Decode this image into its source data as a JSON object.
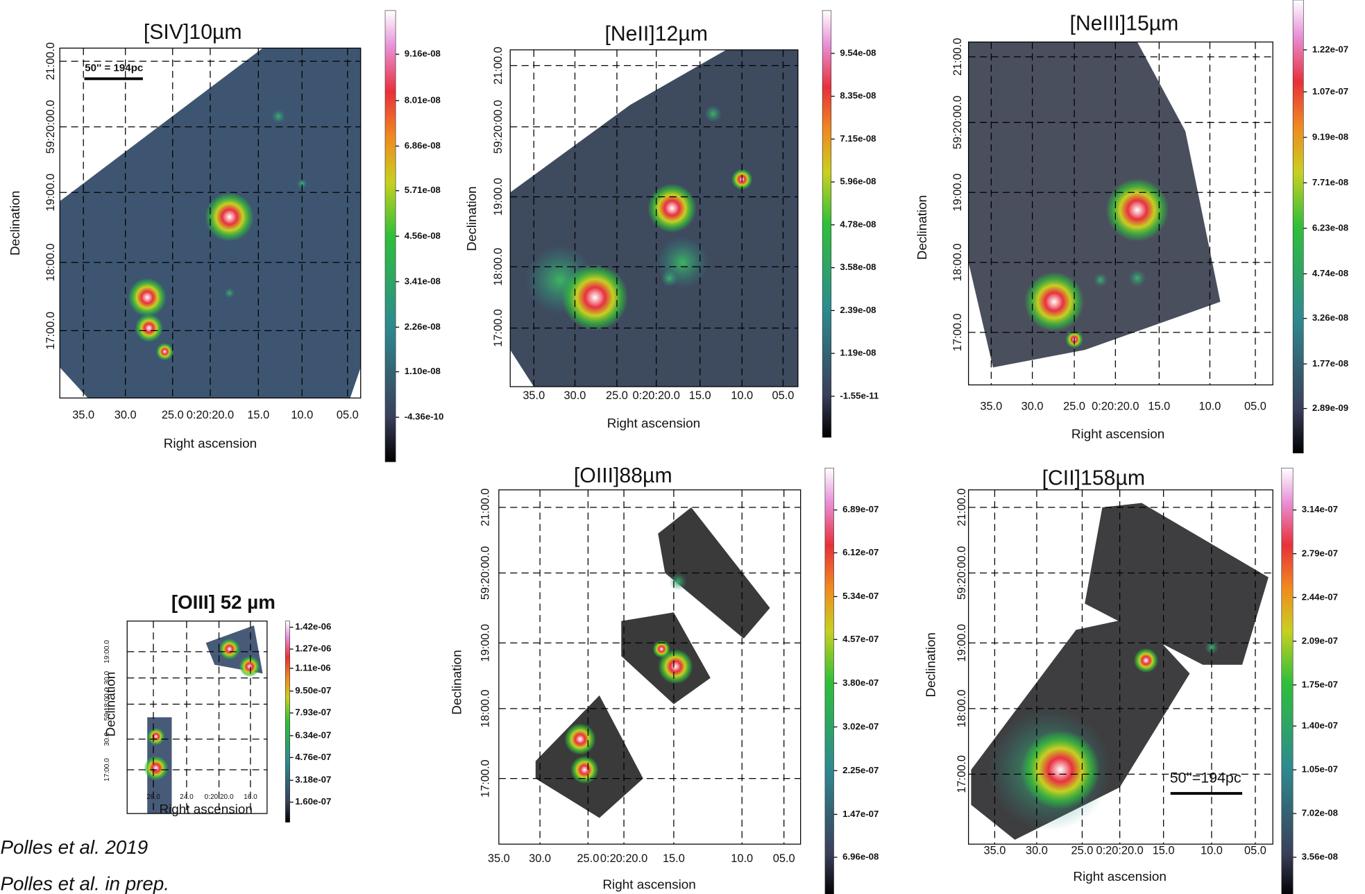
{
  "panels": [
    {
      "title": "[SIV]10µm",
      "ra_label": "Right ascension",
      "dec_label": "Declination",
      "dec_ticks": [
        "21:00.0",
        "59:20:00.0",
        "19:00.0",
        "18:00.0",
        "17:00.0"
      ],
      "ra_ticks": [
        "35.0",
        "30.0",
        "25.0",
        "0:20:20.0",
        "15.0",
        "10.0",
        "05.0"
      ],
      "colorbar": [
        "9.16e-08",
        "8.01e-08",
        "6.86e-08",
        "5.71e-08",
        "4.56e-08",
        "3.41e-08",
        "2.26e-08",
        "1.10e-08",
        "-4.36e-10"
      ],
      "scale_bar": "50'' = 194pc"
    },
    {
      "title": "[NeII]12µm",
      "ra_label": "Right ascension",
      "dec_label": "Declination",
      "dec_ticks": [
        "21:00.0",
        "59:20:00.0",
        "19:00.0",
        "18:00.0",
        "17:00.0"
      ],
      "ra_ticks": [
        "35.0",
        "30.0",
        "25.0",
        "0:20:20.0",
        "15.0",
        "10.0",
        "05.0"
      ],
      "colorbar": [
        "9.54e-08",
        "8.35e-08",
        "7.15e-08",
        "5.96e-08",
        "4.78e-08",
        "3.58e-08",
        "2.39e-08",
        "1.19e-08",
        "-1.55e-11"
      ]
    },
    {
      "title": "[NeIII]15µm",
      "ra_label": "Right ascension",
      "dec_label": "Declination",
      "dec_ticks": [
        "21:00.0",
        "59:20:00.0",
        "19:00.0",
        "18:00.0",
        "17:00.0"
      ],
      "ra_ticks": [
        "35.0",
        "30.0",
        "25.0",
        "0:20:20.0",
        "15.0",
        "10.0",
        "05.0"
      ],
      "colorbar": [
        "1.22e-07",
        "1.07e-07",
        "9.19e-08",
        "7.71e-08",
        "6.23e-08",
        "4.74e-08",
        "3.26e-08",
        "1.77e-08",
        "2.89e-09"
      ]
    },
    {
      "title": "[OIII] 52 µm",
      "ra_label": "Right ascension",
      "dec_label": "Declination",
      "dec_ticks": [
        "19:00.0",
        "30.0",
        "59:18:00.0",
        "30.0",
        "17:00.0"
      ],
      "ra_ticks": [
        "28.0",
        "24.0",
        "0:20:20.0",
        "16.0"
      ],
      "colorbar": [
        "1.42e-06",
        "1.27e-06",
        "1.11e-06",
        "9.50e-07",
        "7.93e-07",
        "6.34e-07",
        "4.76e-07",
        "3.18e-07",
        "1.60e-07"
      ]
    },
    {
      "title": "[OIII]88µm",
      "ra_label": "Right ascension",
      "dec_label": "Declination",
      "dec_ticks": [
        "21:00.0",
        "59:20:00.0",
        "19:00.0",
        "18:00.0",
        "17:00.0"
      ],
      "ra_ticks": [
        "35.0",
        "30.0",
        "25.0",
        "0:20:20.0",
        "15.0",
        "10.0",
        "05.0"
      ],
      "colorbar": [
        "6.89e-07",
        "6.12e-07",
        "5.34e-07",
        "4.57e-07",
        "3.80e-07",
        "3.02e-07",
        "2.25e-07",
        "1.47e-07",
        "6.96e-08"
      ]
    },
    {
      "title": "[CII]158µm",
      "ra_label": "Right ascension",
      "dec_label": "Declination",
      "dec_ticks": [
        "21:00.0",
        "59:20:00.0",
        "19:00.0",
        "18:00.0",
        "17:00.0"
      ],
      "ra_ticks": [
        "35.0",
        "30.0",
        "25.0",
        "0:20:20.0",
        "15.0",
        "10.0",
        "05.0"
      ],
      "colorbar": [
        "3.14e-07",
        "2.79e-07",
        "2.44e-07",
        "2.09e-07",
        "1.75e-07",
        "1.40e-07",
        "1.05e-07",
        "7.02e-08",
        "3.56e-08"
      ],
      "scale_bar": "50''=194pc"
    }
  ],
  "citations": [
    "Polles et al. 2019",
    "Polles et al. in prep."
  ]
}
